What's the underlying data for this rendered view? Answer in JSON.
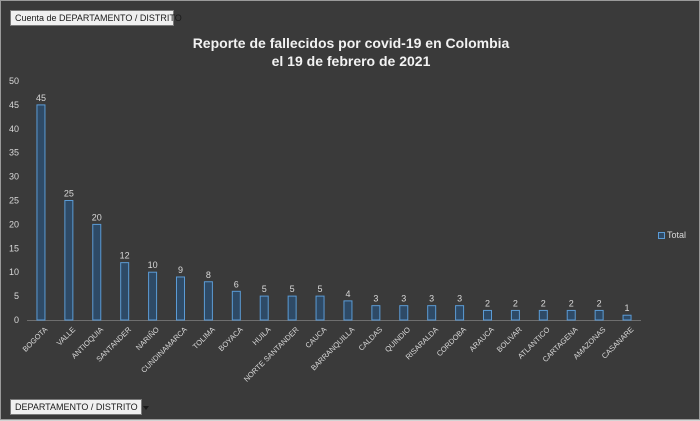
{
  "pivot": {
    "value_field": "Cuenta de DEPARTAMENTO / DISTRITO",
    "axis_field": "DEPARTAMENTO / DISTRITO"
  },
  "chart_data": {
    "type": "bar",
    "title": [
      "Reporte de fallecidos por covid-19 en Colombia",
      "el 19 de febrero de 2021"
    ],
    "categories": [
      "BOGOTA",
      "VALLE",
      "ANTIOQUIA",
      "SANTANDER",
      "NARIÑO",
      "CUNDINAMARCA",
      "TOLIMA",
      "BOYACA",
      "HUILA",
      "NORTE SANTANDER",
      "CAUCA",
      "BARRANQUILLA",
      "CALDAS",
      "QUINDIO",
      "RISARALDA",
      "CORDOBA",
      "ARAUCA",
      "BOLIVAR",
      "ATLANTICO",
      "CARTAGENA",
      "AMAZONAS",
      "CASANARE"
    ],
    "series": [
      {
        "name": "Total",
        "values": [
          45,
          25,
          20,
          12,
          10,
          9,
          8,
          6,
          5,
          5,
          5,
          4,
          3,
          3,
          3,
          3,
          2,
          2,
          2,
          2,
          2,
          1
        ]
      }
    ],
    "ylim": [
      0,
      50
    ],
    "yticks": [
      0,
      5,
      10,
      15,
      20,
      25,
      30,
      35,
      40,
      45,
      50
    ],
    "data_labels": true,
    "grid": false,
    "legend_position": "right",
    "colors": {
      "bar_fill": "#2e4a66",
      "bar_border": "#5b9bd5"
    }
  }
}
